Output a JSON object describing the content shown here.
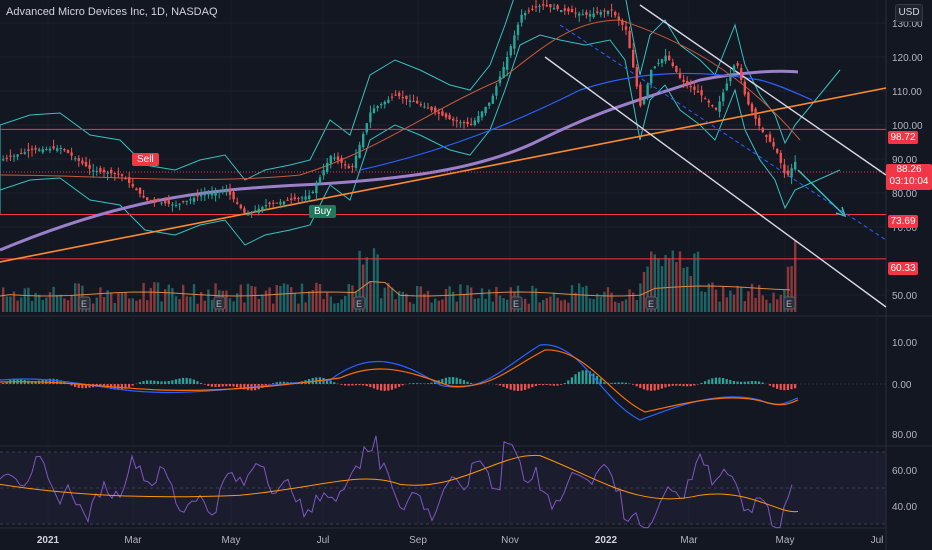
{
  "header": {
    "symbol_title": "Advanced Micro Devices Inc, 1D, NASDAQ",
    "currency_button": "USD"
  },
  "colors": {
    "background": "#131722",
    "up": "#26a69a",
    "down": "#ef5350",
    "ma_slow": "#9b7fc8",
    "trendline": "#ff8a2b",
    "level": "#f23645",
    "channel": "#d7d7e6",
    "bb": "#35c2c0",
    "macd": "#2962ff",
    "signal": "#ff6d00",
    "rsi": "#7e57c2"
  },
  "price_axis": {
    "ticks": [
      "130.00",
      "120.00",
      "110.00",
      "100.00",
      "90.00",
      "80.00",
      "70.00",
      "50.00"
    ]
  },
  "levels": [
    {
      "label": "98.72",
      "value": 98.72
    },
    {
      "label": "73.69",
      "value": 73.69
    },
    {
      "label": "60.33",
      "value": 60.33
    }
  ],
  "last_price": {
    "price": "88.26",
    "countdown": "03:10:04"
  },
  "signals": {
    "sell": "Sell",
    "buy": "Buy"
  },
  "earnings_marker": "E",
  "macd_axis": {
    "ticks": [
      "10.00",
      "0.00"
    ]
  },
  "rsi_axis": {
    "ticks": [
      "80.00",
      "60.00",
      "40.00"
    ]
  },
  "time_axis": {
    "labels": [
      "2021",
      "Mar",
      "May",
      "Jul",
      "Sep",
      "Nov",
      "2022",
      "Mar",
      "May",
      "Jul"
    ]
  }
}
